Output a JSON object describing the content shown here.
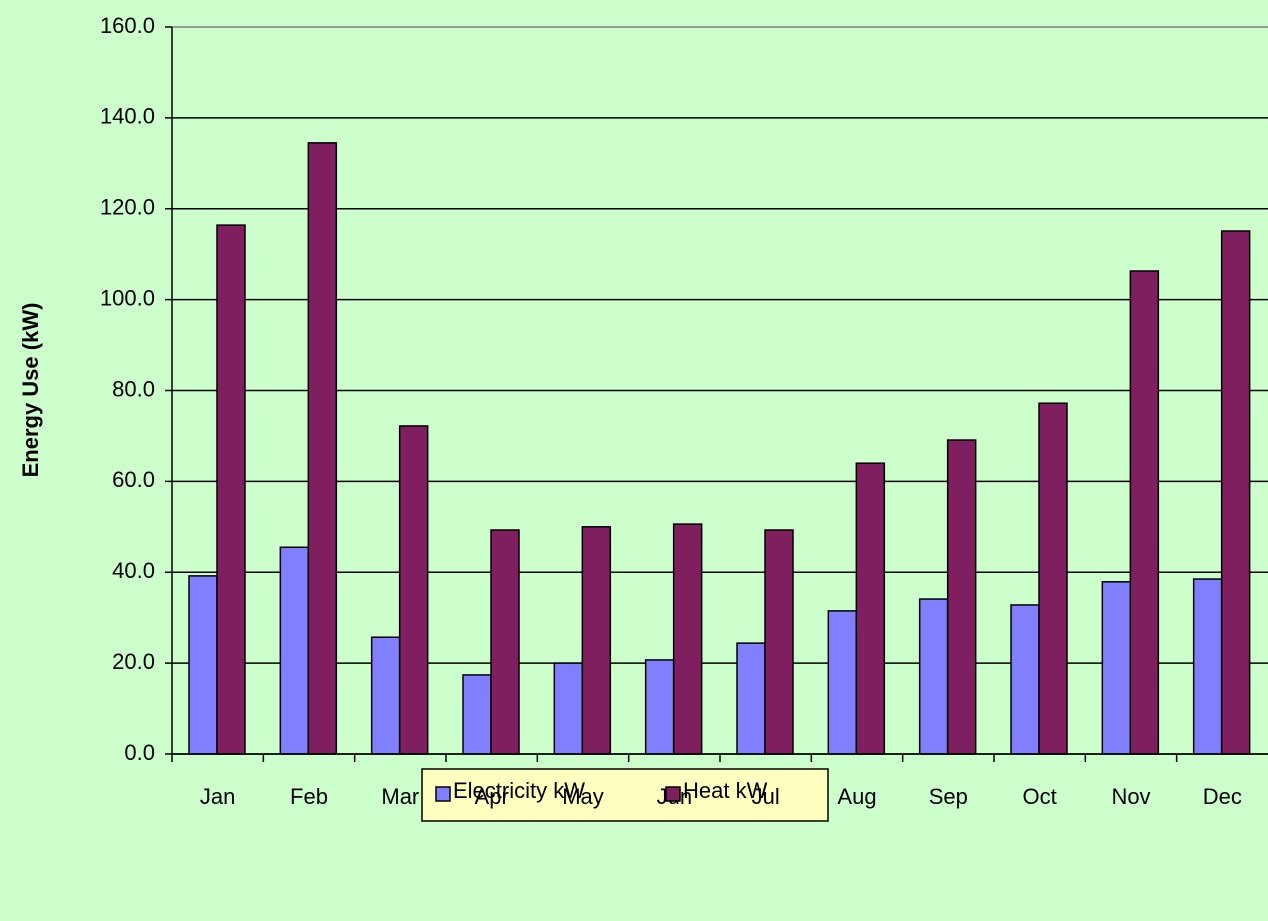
{
  "chart_data": {
    "type": "bar",
    "y_label": "Energy Use  (kW)",
    "categories": [
      "Jan",
      "Feb",
      "Mar",
      "Apr",
      "May",
      "Jun",
      "Jul",
      "Aug",
      "Sep",
      "Oct",
      "Nov",
      "Dec"
    ],
    "series": [
      {
        "name": "Electricity kW",
        "color": "#8080ff",
        "values": [
          39.2,
          45.5,
          25.7,
          17.4,
          20.0,
          20.7,
          24.4,
          31.5,
          34.1,
          32.8,
          37.9,
          38.5
        ]
      },
      {
        "name": "Heat kW",
        "color": "#7f1f5f",
        "values": [
          116.4,
          134.5,
          72.2,
          49.3,
          50.0,
          50.6,
          49.3,
          64.0,
          69.1,
          77.2,
          106.3,
          115.1
        ]
      }
    ],
    "ylim": [
      0,
      160
    ],
    "yticks": [
      {
        "value": 0,
        "label": "0.0"
      },
      {
        "value": 20,
        "label": "20.0"
      },
      {
        "value": 40,
        "label": "40.0"
      },
      {
        "value": 60,
        "label": "60.0"
      },
      {
        "value": 80,
        "label": "80.0"
      },
      {
        "value": 100,
        "label": "100.0"
      },
      {
        "value": 120,
        "label": "120.0"
      },
      {
        "value": 140,
        "label": "140.0"
      },
      {
        "value": 160,
        "label": "160.0"
      }
    ],
    "grid": true
  }
}
